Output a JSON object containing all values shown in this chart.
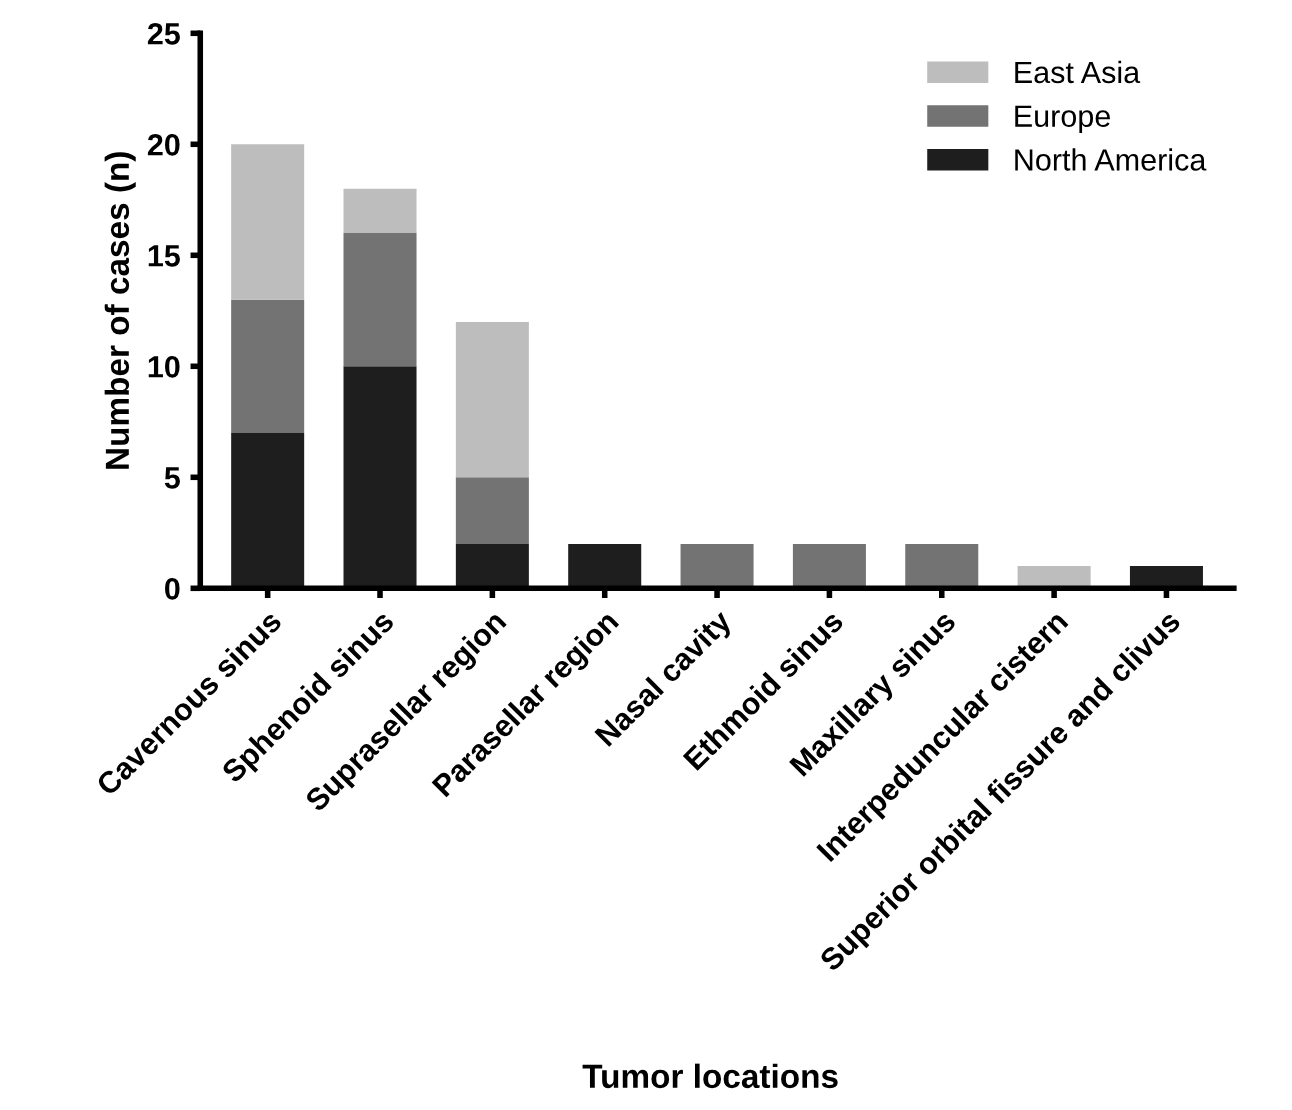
{
  "chart_data": {
    "type": "bar",
    "stacked": true,
    "xlabel": "Tumor locations",
    "ylabel": "Number of cases (n)",
    "categories": [
      "Cavernous sinus",
      "Sphenoid sinus",
      "Suprasellar region",
      "Parasellar region",
      "Nasal cavity",
      "Ethmoid sinus",
      "Maxillary sinus",
      "Interpeduncular cistern",
      "Superior orbital fissure and clivus"
    ],
    "series": [
      {
        "name": "North America",
        "color": "#1e1e1e",
        "values": [
          7,
          10,
          2,
          2,
          0,
          0,
          0,
          0,
          1
        ]
      },
      {
        "name": "Europe",
        "color": "#737373",
        "values": [
          6,
          6,
          3,
          0,
          2,
          2,
          2,
          0,
          0
        ]
      },
      {
        "name": "East Asia",
        "color": "#bdbdbd",
        "values": [
          7,
          2,
          7,
          0,
          0,
          0,
          0,
          1,
          0
        ]
      }
    ],
    "ylim": [
      0,
      25
    ],
    "yticks": [
      0,
      5,
      10,
      15,
      20,
      25
    ],
    "grid": false,
    "legend": "top right"
  }
}
